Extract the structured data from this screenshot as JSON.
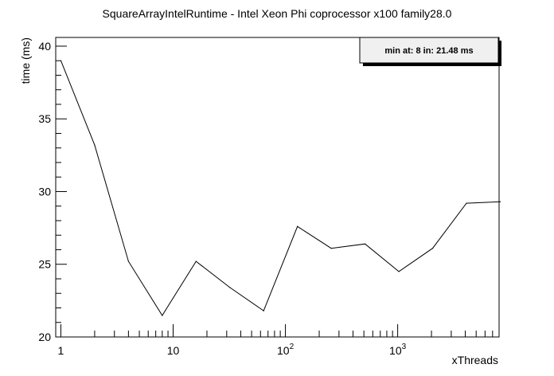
{
  "chart_data": {
    "type": "line",
    "title": "SquareArrayIntelRuntime - Intel Xeon Phi coprocessor x100 family28.0",
    "xlabel": "xThreads",
    "ylabel": "time (ms)",
    "x_scale": "log",
    "xlim": [
      0.9,
      8000
    ],
    "ylim": [
      20,
      40.6
    ],
    "grid": false,
    "x": [
      1,
      2,
      4,
      8,
      16,
      32,
      64,
      128,
      256,
      512,
      1024,
      2048,
      4096,
      8192
    ],
    "y": [
      39.0,
      33.2,
      25.2,
      21.48,
      25.2,
      23.4,
      21.8,
      27.6,
      26.1,
      26.4,
      24.5,
      26.1,
      29.2,
      29.3
    ],
    "x_ticks": [
      {
        "value": 1,
        "base": "1",
        "exp": ""
      },
      {
        "value": 10,
        "base": "10",
        "exp": ""
      },
      {
        "value": 100,
        "base": "10",
        "exp": "2"
      },
      {
        "value": 1000,
        "base": "10",
        "exp": "3"
      }
    ],
    "y_ticks": [
      {
        "value": 20,
        "label": "20"
      },
      {
        "value": 25,
        "label": "25"
      },
      {
        "value": 30,
        "label": "30"
      },
      {
        "value": 35,
        "label": "35"
      },
      {
        "value": 40,
        "label": "40"
      }
    ],
    "annotations": [
      "min at: 8 in: 21.48 ms"
    ],
    "legend_placement": "top-right",
    "line_color": "#000000"
  }
}
